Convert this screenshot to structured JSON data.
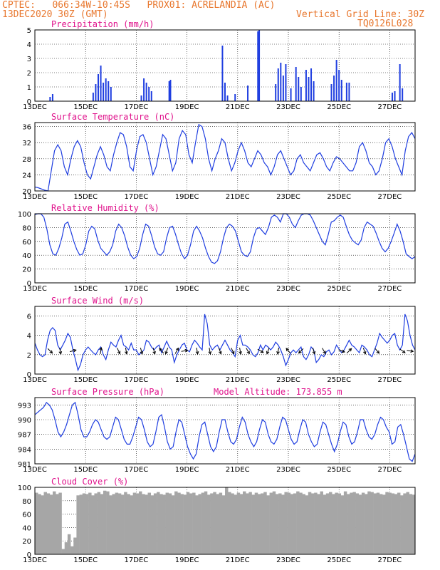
{
  "header": {
    "line1_left": "CPTEC:   066:34W-10:45S   PROX01: ACRELANDIA (AC)",
    "line2_left": "13DEC2020 30Z (GMT)",
    "line2_right": "Vertical Grid Line: 30Z",
    "line3_right": "TQ0126L028"
  },
  "colors": {
    "header": "#e8772e",
    "title": "#e0138c",
    "series": "#1f3ee0",
    "cloud": "#a6a6a6"
  },
  "x_tick_labels": [
    "13DEC",
    "15DEC",
    "17DEC",
    "19DEC",
    "21DEC",
    "23DEC",
    "25DEC",
    "27DEC"
  ],
  "x_tick_days": [
    0,
    2,
    4,
    6,
    8,
    10,
    12,
    14
  ],
  "chart_data": [
    {
      "type": "bar",
      "title": "Precipitation (mm/h)",
      "ylim": [
        0,
        5
      ],
      "yticks": [
        0,
        1,
        2,
        3,
        4,
        5
      ],
      "bars": [
        [
          0.6,
          0.3
        ],
        [
          0.7,
          0.5
        ],
        [
          2.3,
          0.6
        ],
        [
          2.4,
          1.2
        ],
        [
          2.5,
          1.9
        ],
        [
          2.6,
          2.5
        ],
        [
          2.7,
          1.3
        ],
        [
          2.8,
          1.6
        ],
        [
          2.9,
          1.4
        ],
        [
          3.0,
          1.0
        ],
        [
          4.2,
          0.4
        ],
        [
          4.3,
          1.6
        ],
        [
          4.4,
          1.3
        ],
        [
          4.5,
          1.0
        ],
        [
          4.6,
          0.7
        ],
        [
          5.3,
          1.4
        ],
        [
          5.35,
          1.5
        ],
        [
          7.4,
          3.9
        ],
        [
          7.5,
          1.3
        ],
        [
          7.6,
          0.4
        ],
        [
          7.9,
          0.5
        ],
        [
          8.4,
          1.1
        ],
        [
          8.8,
          4.9
        ],
        [
          8.85,
          5.0
        ],
        [
          9.5,
          1.2
        ],
        [
          9.6,
          2.3
        ],
        [
          9.7,
          2.7
        ],
        [
          9.8,
          1.8
        ],
        [
          9.9,
          2.6
        ],
        [
          10.1,
          0.9
        ],
        [
          10.3,
          2.4
        ],
        [
          10.4,
          1.7
        ],
        [
          10.5,
          1.0
        ],
        [
          10.7,
          2.2
        ],
        [
          10.8,
          1.7
        ],
        [
          10.9,
          2.3
        ],
        [
          11.0,
          1.4
        ],
        [
          11.7,
          1.2
        ],
        [
          11.8,
          1.8
        ],
        [
          11.9,
          2.9
        ],
        [
          12.0,
          2.2
        ],
        [
          12.1,
          1.5
        ],
        [
          12.3,
          1.3
        ],
        [
          12.4,
          1.3
        ],
        [
          14.1,
          0.6
        ],
        [
          14.2,
          0.7
        ],
        [
          14.4,
          2.6
        ],
        [
          14.5,
          0.9
        ]
      ]
    },
    {
      "type": "line",
      "title": "Surface Temperature (nC)",
      "ylim": [
        20,
        37
      ],
      "yticks": [
        20,
        24,
        28,
        32,
        36
      ],
      "y": [
        21,
        20.8,
        20.5,
        20.2,
        20,
        25,
        30,
        31.5,
        30,
        26,
        24,
        28,
        31,
        32.5,
        31,
        27,
        24,
        23,
        26,
        29,
        31,
        29,
        26,
        25,
        29,
        32,
        34.5,
        34,
        31,
        26,
        25,
        30,
        33.5,
        34,
        32,
        28,
        24,
        26,
        30,
        34,
        33,
        29,
        25,
        27,
        33,
        35,
        34,
        29,
        27,
        32,
        36.5,
        36,
        33,
        28,
        25,
        28,
        30,
        33,
        32,
        28,
        25,
        27,
        30,
        32,
        30,
        27,
        26,
        28,
        30,
        29,
        27,
        26,
        24,
        26,
        29,
        30,
        28,
        26,
        24,
        25,
        28,
        29,
        27,
        26,
        25,
        27,
        29,
        29.5,
        28,
        26,
        25,
        27,
        28.5,
        28,
        27,
        26,
        25,
        25,
        27,
        31,
        32,
        30,
        27,
        26,
        24,
        25,
        28,
        32,
        33,
        31,
        28,
        26,
        24,
        30,
        33.5,
        34.5,
        33
      ]
    },
    {
      "type": "line",
      "title": "Relative Humidity (%)",
      "ylim": [
        0,
        100
      ],
      "yticks": [
        0,
        20,
        40,
        60,
        80,
        100
      ],
      "y": [
        99,
        100,
        100,
        95,
        78,
        55,
        42,
        40,
        50,
        65,
        85,
        88,
        75,
        60,
        48,
        40,
        42,
        55,
        75,
        82,
        78,
        62,
        50,
        45,
        40,
        45,
        55,
        75,
        85,
        80,
        68,
        52,
        40,
        35,
        38,
        50,
        70,
        85,
        82,
        68,
        52,
        42,
        40,
        45,
        65,
        80,
        82,
        70,
        55,
        42,
        35,
        40,
        55,
        75,
        82,
        75,
        65,
        50,
        38,
        30,
        28,
        32,
        45,
        65,
        80,
        85,
        82,
        75,
        60,
        45,
        40,
        38,
        45,
        65,
        78,
        80,
        75,
        70,
        80,
        95,
        98,
        95,
        88,
        100,
        100,
        95,
        85,
        80,
        90,
        98,
        100,
        100,
        98,
        90,
        80,
        70,
        60,
        55,
        70,
        88,
        90,
        95,
        98,
        95,
        82,
        70,
        62,
        58,
        55,
        62,
        80,
        88,
        85,
        82,
        72,
        60,
        50,
        45,
        50,
        60,
        72,
        85,
        75,
        60,
        42,
        38,
        35,
        38
      ]
    },
    {
      "type": "line",
      "title": "Surface Wind (m/s)",
      "ylim": [
        0,
        7
      ],
      "yticks": [
        0,
        2,
        4,
        6
      ],
      "y": [
        3.2,
        2.5,
        2,
        1.8,
        2,
        3.5,
        4.5,
        4.8,
        4.5,
        3,
        2.5,
        3,
        3.5,
        4.2,
        3.8,
        2.5,
        1.5,
        0.4,
        1,
        2,
        2.5,
        2.8,
        2.5,
        2.2,
        2,
        2.5,
        2.8,
        2,
        1.5,
        2.5,
        3.3,
        3,
        2.8,
        3.5,
        4,
        3,
        2.8,
        2.5,
        3.2,
        2.5,
        2.5,
        2,
        2.2,
        2.5,
        3.5,
        3.3,
        2.8,
        2.5,
        2.8,
        3,
        2.2,
        2.8,
        3.4,
        2.8,
        2.5,
        1.2,
        2,
        2.5,
        3,
        3.2,
        2.5,
        2.3,
        3,
        3.5,
        3.2,
        2.8,
        2.5,
        6.2,
        5.2,
        3,
        2.5,
        2.8,
        3,
        2.5,
        3,
        3.5,
        3,
        2.5,
        2.2,
        1.8,
        3.5,
        4,
        3,
        3,
        2.8,
        2.5,
        2,
        1.8,
        2.2,
        3,
        2.5,
        3,
        2.8,
        2.5,
        2.8,
        3.3,
        3,
        2.5,
        1.8,
        0.9,
        1.5,
        2.2,
        2.5,
        2.2,
        2.5,
        2.8,
        1.8,
        1.5,
        2,
        2.8,
        2.5,
        1.2,
        1.5,
        2,
        1.8,
        2.3,
        2.5,
        2,
        2.3,
        3,
        2.6,
        2.2,
        2.5,
        3,
        3.5,
        3,
        2.8,
        2.5,
        2.2,
        3,
        2.8,
        2.5,
        2,
        1.8,
        2.5,
        3.2,
        4.2,
        3.8,
        3.5,
        3.2,
        3.5,
        4,
        4.2,
        3,
        2.5,
        3,
        6.2,
        5.5,
        4,
        3,
        2.5
      ],
      "vectors": [
        [
          0.6,
          135
        ],
        [
          1.0,
          170
        ],
        [
          1.5,
          75
        ],
        [
          2.6,
          10
        ],
        [
          3.3,
          155
        ],
        [
          3.6,
          170
        ],
        [
          4.2,
          165
        ],
        [
          4.7,
          165
        ],
        [
          5.0,
          320
        ],
        [
          5.2,
          200
        ],
        [
          5.6,
          30
        ],
        [
          5.9,
          80
        ],
        [
          6.4,
          170
        ],
        [
          6.9,
          170
        ],
        [
          7.3,
          160
        ],
        [
          7.8,
          155
        ],
        [
          8.1,
          170
        ],
        [
          8.4,
          150
        ],
        [
          8.9,
          120
        ],
        [
          9.2,
          200
        ],
        [
          9.6,
          190
        ],
        [
          10.0,
          320
        ],
        [
          10.5,
          225
        ],
        [
          11.0,
          165
        ],
        [
          11.4,
          150
        ],
        [
          12.1,
          110
        ],
        [
          12.4,
          45
        ],
        [
          13.0,
          160
        ],
        [
          13.5,
          140
        ],
        [
          14.5,
          125
        ],
        [
          14.8,
          100
        ]
      ]
    },
    {
      "type": "line",
      "title": "Surface Pressure (hPa)",
      "annotation": "Model Altitude: 173.855  m",
      "ylim": [
        981,
        994.5
      ],
      "yticks": [
        981,
        984,
        987,
        990,
        993
      ],
      "y": [
        991,
        991.5,
        992,
        992.5,
        993.5,
        993,
        992,
        990,
        987.5,
        986.5,
        987.5,
        989,
        991,
        993,
        993.5,
        991,
        988,
        986.5,
        986.5,
        987.5,
        989,
        990,
        989.5,
        988,
        986.5,
        986,
        986.5,
        988.5,
        990.5,
        990,
        988,
        986,
        985,
        985,
        986.5,
        988.5,
        990.5,
        990,
        988,
        985.5,
        984.5,
        985,
        987.5,
        990.5,
        991,
        988.5,
        985.5,
        984,
        984.5,
        987.5,
        990,
        989.5,
        987,
        984.5,
        983,
        982,
        983,
        986.5,
        989,
        989.5,
        987,
        984.5,
        983.5,
        984.5,
        987.5,
        990,
        990,
        987.5,
        985.5,
        985,
        986,
        988.5,
        990.5,
        989.5,
        987,
        985.5,
        984.5,
        985.5,
        988,
        990,
        989.5,
        987,
        985.5,
        985,
        986,
        988.5,
        990.5,
        990,
        988,
        986,
        985,
        985.5,
        988,
        990,
        989.5,
        987,
        985.5,
        984.5,
        985,
        987.5,
        989.5,
        989,
        987,
        985,
        983.5,
        985,
        987.5,
        989.5,
        989,
        986.5,
        985,
        985.5,
        987.5,
        990,
        990,
        988,
        986.5,
        986,
        987,
        989,
        990.5,
        990,
        988.5,
        987.5,
        985,
        985.5,
        988.5,
        989,
        987,
        984.5,
        982,
        981.5,
        983
      ]
    },
    {
      "type": "bar",
      "title": "Cloud Cover (%)",
      "ylim": [
        0,
        100
      ],
      "yticks": [
        0,
        20,
        40,
        60,
        80,
        100
      ],
      "y": [
        92,
        90,
        88,
        93,
        91,
        89,
        94,
        90,
        92,
        8,
        18,
        30,
        12,
        25,
        88,
        89,
        91,
        90,
        92,
        88,
        91,
        93,
        90,
        95,
        94,
        88,
        90,
        92,
        91,
        89,
        93,
        90,
        88,
        92,
        91,
        94,
        90,
        89,
        92,
        88,
        91,
        93,
        90,
        89,
        92,
        91,
        88,
        94,
        92,
        90,
        89,
        93,
        91,
        92,
        88,
        90,
        92,
        94,
        89,
        91,
        93,
        90,
        92,
        88,
        100,
        93,
        91,
        89,
        92,
        90,
        94,
        91,
        93,
        89,
        92,
        90,
        91,
        93,
        88,
        92,
        94,
        90,
        91,
        89,
        93,
        92,
        90,
        91,
        94,
        92,
        90,
        88,
        93,
        91,
        92,
        90,
        94,
        89,
        91,
        93,
        90,
        92,
        91,
        88,
        94,
        90,
        92,
        93,
        91,
        89,
        92,
        90,
        94,
        93,
        91,
        92,
        90,
        89,
        93,
        92,
        91,
        90,
        92,
        88,
        91,
        93,
        90,
        89
      ]
    }
  ]
}
